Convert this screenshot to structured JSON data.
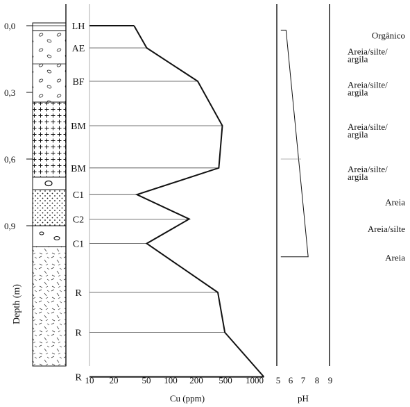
{
  "depth_axis": {
    "title": "Depth (m)",
    "ticks": [
      {
        "label": "0,0",
        "value": 0.0
      },
      {
        "label": "0,3",
        "value": 0.3
      },
      {
        "label": "0,6",
        "value": 0.6
      },
      {
        "label": "0,9",
        "value": 0.9
      }
    ]
  },
  "horizons": [
    {
      "name": "LH",
      "depth": 0.0
    },
    {
      "name": "AE",
      "depth": 0.1
    },
    {
      "name": "BF",
      "depth": 0.25
    },
    {
      "name": "BM",
      "depth": 0.45
    },
    {
      "name": "BM",
      "depth": 0.64
    },
    {
      "name": "C1",
      "depth": 0.76
    },
    {
      "name": "C2",
      "depth": 0.87
    },
    {
      "name": "C1",
      "depth": 0.98
    },
    {
      "name": "R",
      "depth": 1.2
    },
    {
      "name": "R",
      "depth": 1.38
    },
    {
      "name": "R",
      "depth": 1.58
    }
  ],
  "chart_data": [
    {
      "type": "line",
      "xlabel": "Cu (ppm)",
      "x_scale": "log",
      "x_ticks": [
        10,
        20,
        50,
        100,
        200,
        500,
        1000
      ],
      "x_tick_labels": [
        "10",
        "20",
        "50",
        "100",
        "200",
        "500",
        "1000"
      ],
      "y_axis": "depth",
      "points": [
        {
          "horizon": "LH",
          "depth": 0.0,
          "cu": 35
        },
        {
          "horizon": "AE",
          "depth": 0.1,
          "cu": 50
        },
        {
          "horizon": "BF",
          "depth": 0.25,
          "cu": 210
        },
        {
          "horizon": "BM",
          "depth": 0.45,
          "cu": 420
        },
        {
          "horizon": "BM",
          "depth": 0.64,
          "cu": 380
        },
        {
          "horizon": "C1",
          "depth": 0.76,
          "cu": 38
        },
        {
          "horizon": "C2",
          "depth": 0.87,
          "cu": 165
        },
        {
          "horizon": "C1",
          "depth": 0.98,
          "cu": 50
        },
        {
          "horizon": "R",
          "depth": 1.2,
          "cu": 370
        },
        {
          "horizon": "R",
          "depth": 1.38,
          "cu": 450
        },
        {
          "horizon": "R",
          "depth": 1.58,
          "cu": 1350
        }
      ]
    },
    {
      "type": "line",
      "xlabel": "pH",
      "x_ticks": [
        5,
        6,
        7,
        8,
        9
      ],
      "x_tick_labels": [
        "5",
        "6",
        "7",
        "8",
        "9"
      ],
      "y_axis": "depth",
      "points": [
        {
          "depth": 0.02,
          "ph": 5.2
        },
        {
          "depth": 0.02,
          "ph": 5.6
        },
        {
          "depth": 1.04,
          "ph": 7.3
        },
        {
          "depth": 1.04,
          "ph": 5.2
        }
      ]
    }
  ],
  "textures": [
    {
      "label": "Orgânico",
      "depth": 0.02
    },
    {
      "label": "Areia/silte/",
      "label2": "argila",
      "depth": 0.12
    },
    {
      "label": "Areia/silte/",
      "label2": "argila",
      "depth": 0.27
    },
    {
      "label": "Areia/silte/",
      "label2": "argila",
      "depth": 0.46
    },
    {
      "label": "Areia/silte/",
      "label2": "argila",
      "depth": 0.65
    },
    {
      "label": "Areia",
      "depth": 0.77
    },
    {
      "label": "Areia/silte",
      "depth": 0.89
    },
    {
      "label": "Areia",
      "depth": 1.02
    }
  ],
  "colors": {
    "line": "#111111",
    "thin": "#666666",
    "grid": "#999999"
  }
}
